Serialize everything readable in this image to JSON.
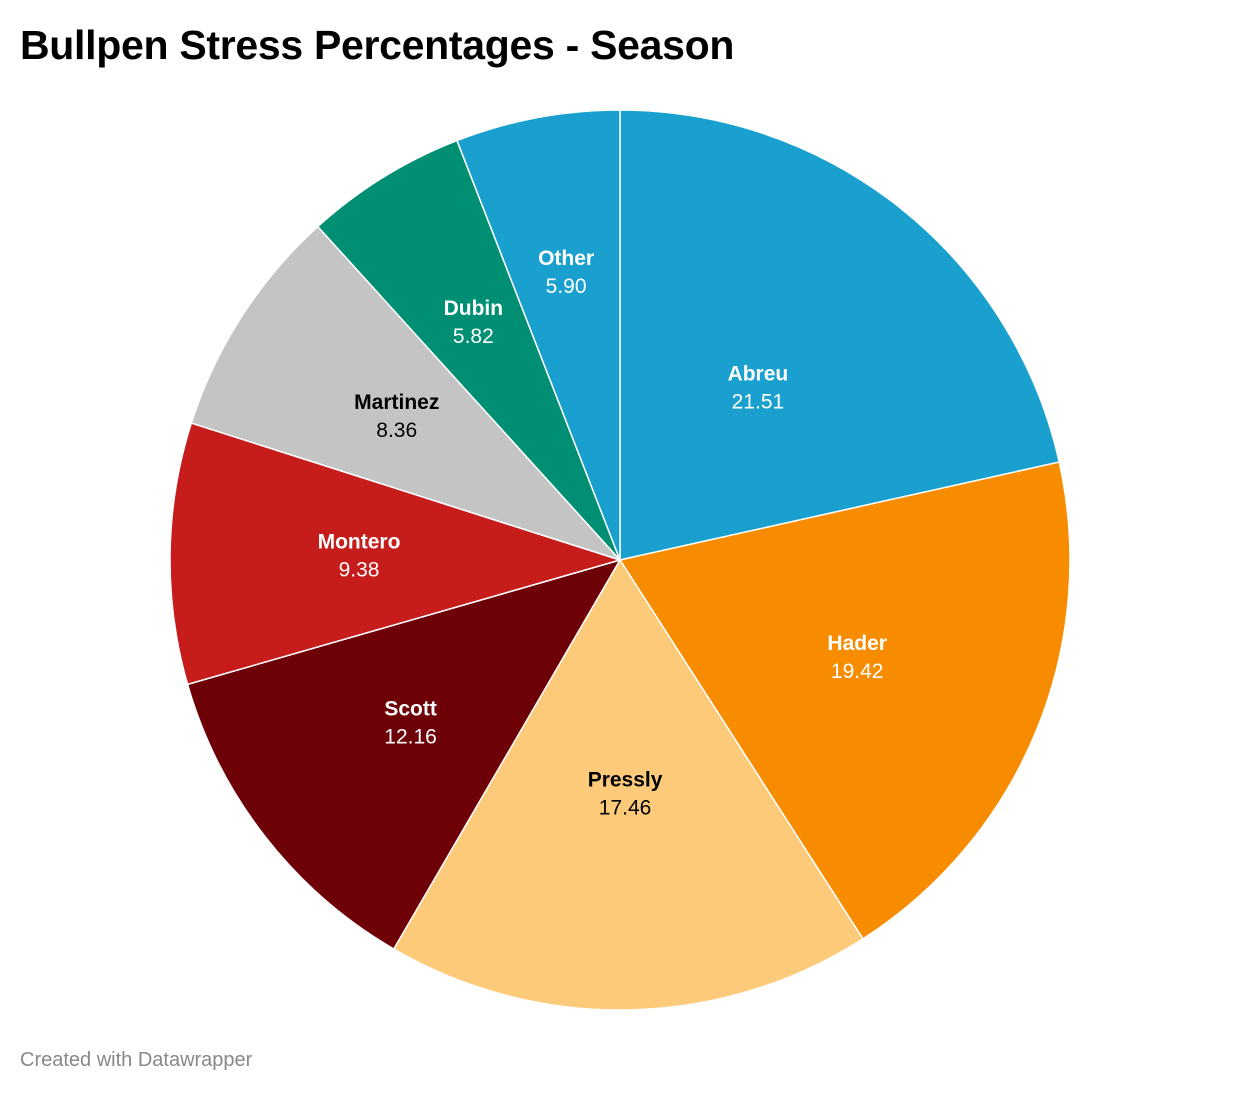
{
  "title": "Bullpen Stress Percentages - Season",
  "footer": "Created with Datawrapper",
  "chart_data": {
    "type": "pie",
    "title": "Bullpen Stress Percentages - Season",
    "start_angle_deg": 0,
    "direction": "clockwise",
    "slices": [
      {
        "label": "Abreu",
        "value": 21.51,
        "display": "21.51",
        "color": "#1aa0ce",
        "text_color": "#ffffff"
      },
      {
        "label": "Hader",
        "value": 19.42,
        "display": "19.42",
        "color": "#f78c00",
        "text_color": "#ffffff"
      },
      {
        "label": "Pressly",
        "value": 17.46,
        "display": "17.46",
        "color": "#fcca79",
        "text_color": "#000000"
      },
      {
        "label": "Scott",
        "value": 12.16,
        "display": "12.16",
        "color": "#6e0008",
        "text_color": "#ffffff"
      },
      {
        "label": "Montero",
        "value": 9.38,
        "display": "9.38",
        "color": "#c71c1c",
        "text_color": "#ffffff"
      },
      {
        "label": "Martinez",
        "value": 8.36,
        "display": "8.36",
        "color": "#c4c4c4",
        "text_color": "#000000"
      },
      {
        "label": "Dubin",
        "value": 5.82,
        "display": "5.82",
        "color": "#008f73",
        "text_color": "#ffffff"
      },
      {
        "label": "Other",
        "value": 5.9,
        "display": "5.90",
        "color": "#1aa0ce",
        "text_color": "#ffffff"
      }
    ]
  }
}
